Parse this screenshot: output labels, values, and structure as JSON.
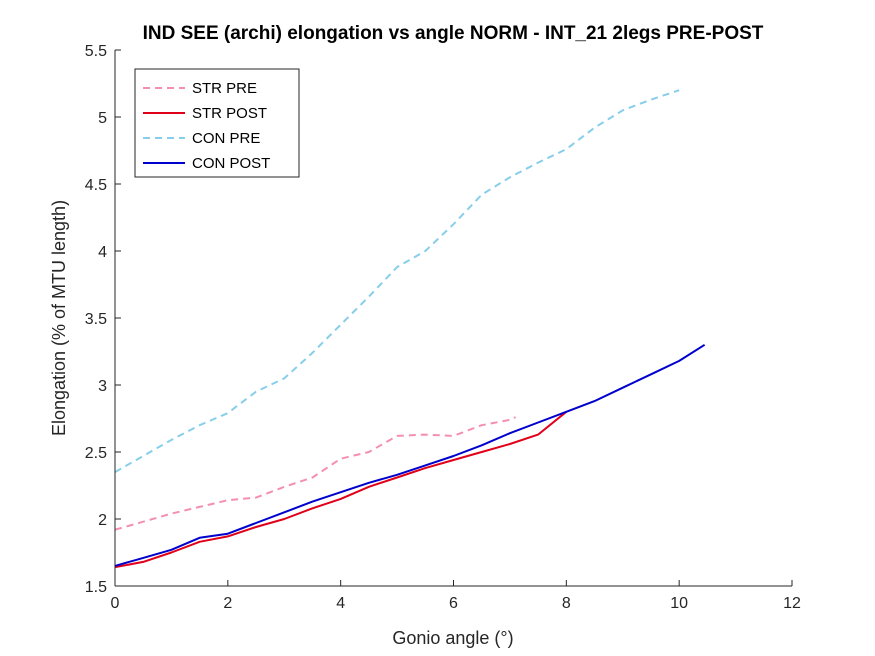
{
  "chart_data": {
    "type": "line",
    "title": "IND SEE (archi) elongation vs angle NORM - INT_21 2legs PRE-POST",
    "xlabel": "Gonio angle (°)",
    "ylabel": "Elongation (% of MTU length)",
    "xlim": [
      0,
      12
    ],
    "ylim": [
      1.5,
      5.5
    ],
    "xticks": [
      0,
      2,
      4,
      6,
      8,
      10,
      12
    ],
    "yticks": [
      1.5,
      2,
      2.5,
      3,
      3.5,
      4,
      4.5,
      5,
      5.5
    ],
    "xtick_labels": [
      "0",
      "2",
      "4",
      "6",
      "8",
      "10",
      "12"
    ],
    "ytick_labels": [
      "1.5",
      "2",
      "2.5",
      "3",
      "3.5",
      "4",
      "4.5",
      "5",
      "5.5"
    ],
    "grid": false,
    "legend_position": "top-left",
    "series": [
      {
        "name": "STR PRE",
        "color": "#f48fb1",
        "dash": "dashed",
        "x": [
          0,
          0.5,
          1,
          1.5,
          2,
          2.5,
          3,
          3.5,
          4,
          4.5,
          5,
          5.5,
          6,
          6.5,
          7,
          7.1
        ],
        "y": [
          1.92,
          1.98,
          2.04,
          2.09,
          2.14,
          2.16,
          2.24,
          2.31,
          2.45,
          2.5,
          2.62,
          2.63,
          2.62,
          2.7,
          2.74,
          2.76
        ]
      },
      {
        "name": "STR POST",
        "color": "#e0001a",
        "dash": "solid",
        "x": [
          0,
          0.5,
          1,
          1.5,
          2,
          2.5,
          3,
          3.5,
          4,
          4.5,
          5,
          5.5,
          6,
          6.5,
          7,
          7.5,
          8
        ],
        "y": [
          1.64,
          1.68,
          1.75,
          1.83,
          1.87,
          1.94,
          2.0,
          2.08,
          2.15,
          2.24,
          2.31,
          2.38,
          2.44,
          2.5,
          2.56,
          2.63,
          2.8
        ]
      },
      {
        "name": "CON PRE",
        "color": "#87ceeb",
        "dash": "dashed",
        "x": [
          0,
          0.5,
          1,
          1.5,
          2,
          2.5,
          3,
          3.5,
          4,
          4.5,
          5,
          5.5,
          6,
          6.5,
          7,
          7.5,
          8,
          8.5,
          9,
          9.5,
          10
        ],
        "y": [
          2.35,
          2.47,
          2.59,
          2.7,
          2.79,
          2.95,
          3.05,
          3.24,
          3.45,
          3.66,
          3.88,
          4.0,
          4.2,
          4.42,
          4.55,
          4.66,
          4.76,
          4.92,
          5.05,
          5.13,
          5.2
        ]
      },
      {
        "name": "CON POST",
        "color": "#0000cd",
        "dash": "solid",
        "x": [
          0,
          0.5,
          1,
          1.5,
          2,
          2.5,
          3,
          3.5,
          4,
          4.5,
          5,
          5.5,
          6,
          6.5,
          7,
          7.5,
          8,
          8.5,
          9,
          9.5,
          10,
          10.45
        ],
        "y": [
          1.65,
          1.71,
          1.77,
          1.86,
          1.89,
          1.97,
          2.05,
          2.13,
          2.2,
          2.27,
          2.33,
          2.4,
          2.47,
          2.55,
          2.64,
          2.72,
          2.8,
          2.88,
          2.98,
          3.08,
          3.18,
          3.3
        ]
      }
    ]
  }
}
